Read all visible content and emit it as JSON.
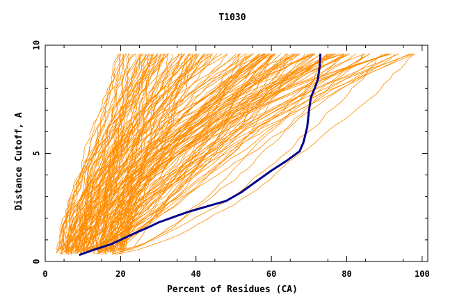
{
  "chart_data": {
    "type": "line",
    "title": "T1030",
    "xlabel": "Percent of Residues (CA)",
    "ylabel": "Distance Cutoff, A",
    "xlim": [
      0,
      101.5
    ],
    "ylim": [
      0,
      10
    ],
    "x_ticks": [
      "0",
      "20",
      "40",
      "60",
      "80",
      "100"
    ],
    "y_ticks": [
      "0",
      "5",
      "10"
    ],
    "background_colors": {
      "others": "#ff8c00",
      "highlight": "#00008b"
    },
    "bundle_description": "many GDT curves (orange) from all models",
    "highlight_series": {
      "x": [
        9,
        13,
        17.5,
        20,
        23,
        27,
        30,
        34,
        38,
        43,
        48,
        52,
        56,
        60,
        64,
        67.5,
        68.5,
        69.5,
        70,
        70.5,
        71.5,
        72.3,
        72.8,
        73
      ],
      "y": [
        0.3,
        0.55,
        0.8,
        1.0,
        1.25,
        1.55,
        1.8,
        2.05,
        2.3,
        2.55,
        2.8,
        3.2,
        3.7,
        4.2,
        4.65,
        5.1,
        5.5,
        6.2,
        7.0,
        7.6,
        8.0,
        8.4,
        9.0,
        9.6
      ]
    }
  }
}
